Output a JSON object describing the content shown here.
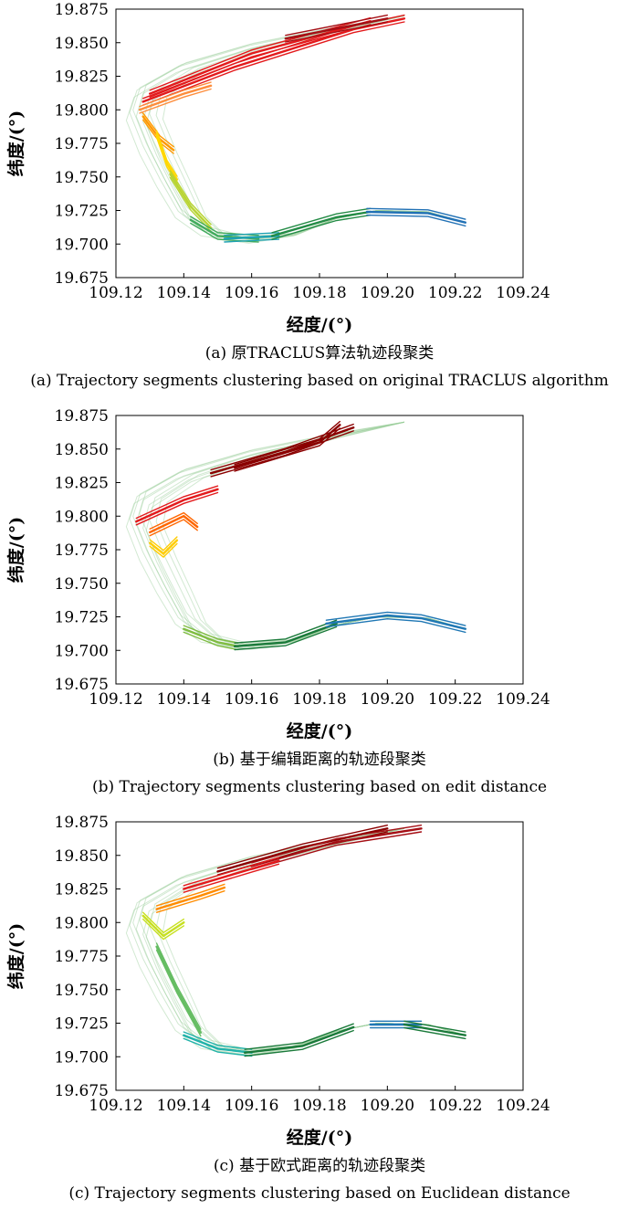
{
  "chart_data": [
    {
      "type": "line",
      "xlabel": "经度/(°)",
      "ylabel": "纬度/(°)",
      "xlim": [
        109.12,
        109.24
      ],
      "ylim": [
        19.675,
        19.875
      ],
      "x_ticks": [
        "109.12",
        "109.14",
        "109.16",
        "109.18",
        "109.20",
        "109.22",
        "109.24"
      ],
      "y_ticks": [
        "19.675",
        "19.700",
        "19.725",
        "19.750",
        "19.775",
        "19.800",
        "19.825",
        "19.850",
        "19.875"
      ],
      "caption_zh": "(a) 原TRACLUS算法轨迹段聚类",
      "caption_en": "(a) Trajectory segments clustering based on original TRACLUS algorithm",
      "segments": [
        {
          "color": "#e31a1c",
          "points": [
            [
              109.128,
              19.806
            ],
            [
              109.155,
              19.832
            ],
            [
              109.19,
              19.86
            ],
            [
              109.205,
              19.868
            ]
          ]
        },
        {
          "color": "#e31a1c",
          "points": [
            [
              109.13,
              19.812
            ],
            [
              109.16,
              19.842
            ],
            [
              109.195,
              19.866
            ]
          ]
        },
        {
          "color": "#a50f15",
          "points": [
            [
              109.17,
              19.853
            ],
            [
              109.2,
              19.868
            ]
          ]
        },
        {
          "color": "#fd8d3c",
          "points": [
            [
              109.127,
              19.8
            ],
            [
              109.14,
              19.812
            ],
            [
              109.148,
              19.818
            ]
          ]
        },
        {
          "color": "#ff9900",
          "points": [
            [
              109.128,
              19.795
            ],
            [
              109.133,
              19.778
            ],
            [
              109.137,
              19.77
            ]
          ]
        },
        {
          "color": "#ffd700",
          "points": [
            [
              109.132,
              19.782
            ],
            [
              109.135,
              19.76
            ],
            [
              109.138,
              19.748
            ]
          ]
        },
        {
          "color": "#b8d432",
          "points": [
            [
              109.136,
              19.752
            ],
            [
              109.142,
              19.728
            ],
            [
              109.148,
              19.712
            ]
          ]
        },
        {
          "color": "#41ab5d",
          "points": [
            [
              109.142,
              19.718
            ],
            [
              109.15,
              19.706
            ],
            [
              109.162,
              19.704
            ]
          ]
        },
        {
          "color": "#1fa2b3",
          "points": [
            [
              109.152,
              19.704
            ],
            [
              109.168,
              19.706
            ]
          ]
        },
        {
          "color": "#238b45",
          "points": [
            [
              109.166,
              19.706
            ],
            [
              109.185,
              19.72
            ],
            [
              109.195,
              19.724
            ]
          ]
        },
        {
          "color": "#2171b5",
          "points": [
            [
              109.194,
              19.724
            ],
            [
              109.212,
              19.723
            ],
            [
              109.223,
              19.716
            ]
          ]
        }
      ]
    },
    {
      "type": "line",
      "xlabel": "经度/(°)",
      "ylabel": "纬度/(°)",
      "xlim": [
        109.12,
        109.24
      ],
      "ylim": [
        19.675,
        19.875
      ],
      "x_ticks": [
        "109.12",
        "109.14",
        "109.16",
        "109.18",
        "109.20",
        "109.22",
        "109.24"
      ],
      "y_ticks": [
        "19.675",
        "19.700",
        "19.725",
        "19.750",
        "19.775",
        "19.800",
        "19.825",
        "19.850",
        "19.875"
      ],
      "caption_zh": "(b) 基于编辑距离的轨迹段聚类",
      "caption_en": "(b) Trajectory segments clustering based on edit distance",
      "segments": [
        {
          "color": "#8b0000",
          "points": [
            [
              109.148,
              19.832
            ],
            [
              109.17,
              19.848
            ],
            [
              109.19,
              19.866
            ]
          ]
        },
        {
          "color": "#8b0000",
          "points": [
            [
              109.155,
              19.836
            ],
            [
              109.18,
              19.855
            ],
            [
              109.186,
              19.868
            ]
          ]
        },
        {
          "color": "#e31a1c",
          "points": [
            [
              109.126,
              19.796
            ],
            [
              109.14,
              19.812
            ],
            [
              109.15,
              19.82
            ]
          ]
        },
        {
          "color": "#ff6600",
          "points": [
            [
              109.13,
              19.788
            ],
            [
              109.14,
              19.8
            ],
            [
              109.144,
              19.792
            ]
          ]
        },
        {
          "color": "#ffcc00",
          "points": [
            [
              109.13,
              19.78
            ],
            [
              109.134,
              19.772
            ],
            [
              109.138,
              19.782
            ]
          ]
        },
        {
          "color": "#7fbc41",
          "points": [
            [
              109.14,
              19.716
            ],
            [
              109.15,
              19.706
            ],
            [
              109.156,
              19.703
            ]
          ]
        },
        {
          "color": "#1a7a3a",
          "points": [
            [
              109.155,
              19.703
            ],
            [
              109.17,
              19.706
            ],
            [
              109.185,
              19.72
            ]
          ]
        },
        {
          "color": "#1f77b4",
          "points": [
            [
              109.182,
              19.72
            ],
            [
              109.2,
              19.726
            ],
            [
              109.21,
              19.724
            ],
            [
              109.223,
              19.716
            ]
          ]
        }
      ]
    },
    {
      "type": "line",
      "xlabel": "经度/(°)",
      "ylabel": "纬度/(°)",
      "xlim": [
        109.12,
        109.24
      ],
      "ylim": [
        19.675,
        19.875
      ],
      "x_ticks": [
        "109.12",
        "109.14",
        "109.16",
        "109.18",
        "109.20",
        "109.22",
        "109.24"
      ],
      "y_ticks": [
        "19.675",
        "19.700",
        "19.725",
        "19.750",
        "19.775",
        "19.800",
        "19.825",
        "19.850",
        "19.875"
      ],
      "caption_zh": "(c) 基于欧式距离的轨迹段聚类",
      "caption_en": "(c) Trajectory segments clustering based on Euclidean distance",
      "segments": [
        {
          "color": "#8b0000",
          "points": [
            [
              109.15,
              19.838
            ],
            [
              109.175,
              19.856
            ],
            [
              109.2,
              19.87
            ]
          ]
        },
        {
          "color": "#a50f15",
          "points": [
            [
              109.16,
              19.842
            ],
            [
              109.185,
              19.86
            ],
            [
              109.21,
              19.87
            ]
          ]
        },
        {
          "color": "#e31a1c",
          "points": [
            [
              109.14,
              19.825
            ],
            [
              109.16,
              19.84
            ],
            [
              109.168,
              19.846
            ]
          ]
        },
        {
          "color": "#ff8c00",
          "points": [
            [
              109.132,
              19.81
            ],
            [
              109.145,
              19.82
            ],
            [
              109.152,
              19.826
            ]
          ]
        },
        {
          "color": "#c7e020",
          "points": [
            [
              109.128,
              19.805
            ],
            [
              109.134,
              19.79
            ],
            [
              109.14,
              19.8
            ]
          ]
        },
        {
          "color": "#66bd63",
          "points": [
            [
              109.132,
              19.782
            ],
            [
              109.138,
              19.75
            ],
            [
              109.145,
              19.718
            ]
          ]
        },
        {
          "color": "#20b2aa",
          "points": [
            [
              109.14,
              19.716
            ],
            [
              109.15,
              19.706
            ],
            [
              109.16,
              19.703
            ]
          ]
        },
        {
          "color": "#1a7a3a",
          "points": [
            [
              109.158,
              19.703
            ],
            [
              109.175,
              19.708
            ],
            [
              109.19,
              19.722
            ]
          ]
        },
        {
          "color": "#1f77b4",
          "points": [
            [
              109.195,
              19.724
            ],
            [
              109.21,
              19.724
            ]
          ]
        },
        {
          "color": "#1a7a3a",
          "points": [
            [
              109.205,
              19.724
            ],
            [
              109.223,
              19.716
            ]
          ]
        }
      ]
    }
  ]
}
